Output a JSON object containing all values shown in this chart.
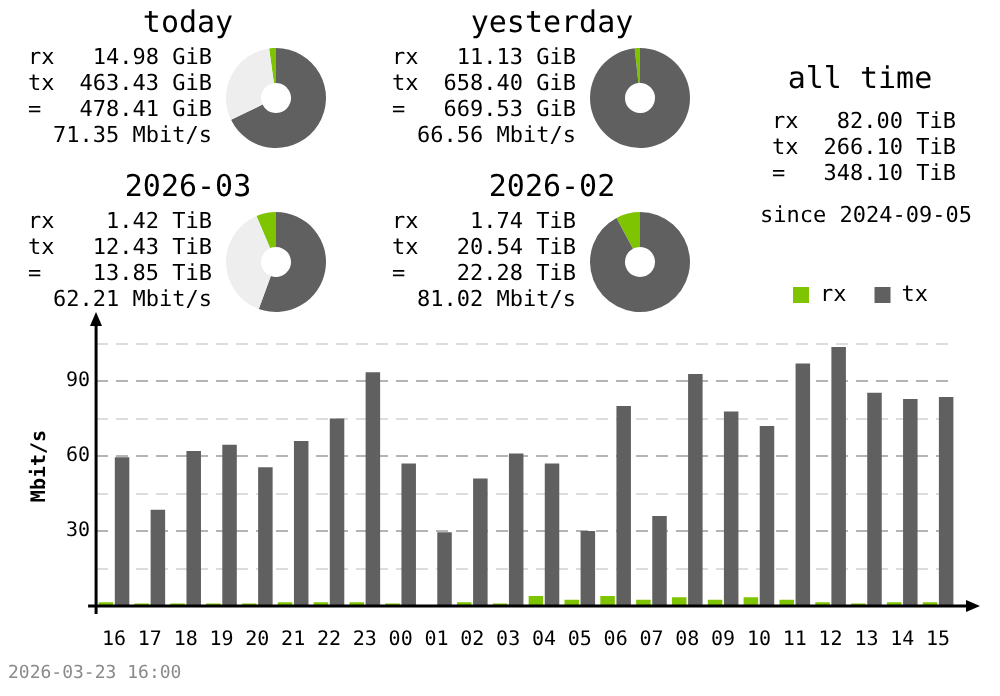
{
  "chart_data": [
    {
      "type": "donut",
      "title": "today",
      "categories": [
        null,
        null,
        null
      ],
      "values": [
        2.2,
        67.8,
        30
      ],
      "colors": [
        "#7fc400",
        "#606060",
        "#eeeeee"
      ],
      "annotations": [
        "rx 14.98 GiB",
        "tx 463.43 GiB",
        "= 478.41 GiB",
        "71.35 Mbit/s"
      ]
    },
    {
      "type": "donut",
      "title": "yesterday",
      "categories": [
        null,
        null
      ],
      "values": [
        1.7,
        98.3
      ],
      "colors": [
        "#7fc400",
        "#606060"
      ],
      "annotations": [
        "rx 11.13 GiB",
        "tx 658.40 GiB",
        "= 669.53 GiB",
        "66.56 Mbit/s"
      ]
    },
    {
      "type": "donut",
      "title": "2026-03",
      "categories": [
        null,
        null,
        null
      ],
      "values": [
        6.4,
        55.6,
        38
      ],
      "colors": [
        "#7fc400",
        "#606060",
        "#eeeeee"
      ],
      "annotations": [
        "rx 1.42 TiB",
        "tx 12.43 TiB",
        "= 13.85 TiB",
        "62.21 Mbit/s"
      ]
    },
    {
      "type": "donut",
      "title": "2026-02",
      "categories": [
        null,
        null
      ],
      "values": [
        7.8,
        92.2
      ],
      "colors": [
        "#7fc400",
        "#606060"
      ],
      "annotations": [
        "rx 1.74 TiB",
        "tx 20.54 TiB",
        "= 22.28 TiB",
        "81.02 Mbit/s"
      ]
    },
    {
      "type": "other",
      "title": "all time",
      "annotations": [
        "rx 82.00 TiB",
        "tx 266.10 TiB",
        "= 348.10 TiB",
        "since 2024-09-05"
      ]
    },
    {
      "type": "bar",
      "ylabel": "Mbit/s",
      "categories": [
        "16",
        "17",
        "18",
        "19",
        "20",
        "21",
        "22",
        "23",
        "00",
        "01",
        "02",
        "03",
        "04",
        "05",
        "06",
        "07",
        "08",
        "09",
        "10",
        "11",
        "12",
        "13",
        "14",
        "15"
      ],
      "series": [
        {
          "name": "rx",
          "color": "#7fc400",
          "values": [
            1.5,
            1,
            1,
            1,
            1,
            1.5,
            1.5,
            1.5,
            1,
            0,
            1.5,
            1,
            4,
            2.5,
            4,
            2.5,
            3.5,
            2.5,
            3.5,
            2.5,
            1.5,
            1,
            1.5,
            1.5
          ]
        },
        {
          "name": "tx",
          "color": "#606060",
          "values": [
            59.5,
            38.5,
            62,
            64.5,
            55.5,
            66,
            75,
            93.5,
            57,
            29.5,
            51,
            61,
            57,
            30,
            80,
            36,
            92.8,
            77.8,
            72,
            97,
            103.6,
            85.3,
            82.8,
            83.6
          ]
        }
      ],
      "ylim": [
        0,
        112
      ],
      "yticks": [
        {
          "value": 0,
          "label": null
        },
        {
          "value": 15,
          "label": null
        },
        30,
        {
          "value": 45,
          "label": null
        },
        60,
        {
          "value": 75,
          "label": null
        },
        90,
        {
          "value": 105,
          "label": null
        }
      ],
      "grid": "y",
      "legend": "top right",
      "annotations": [
        "2026-03-23 16:00"
      ]
    }
  ]
}
